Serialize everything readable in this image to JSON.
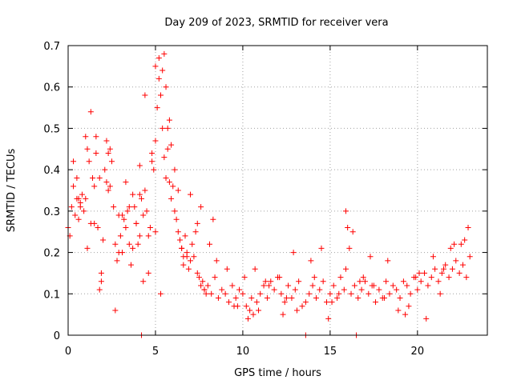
{
  "chart_data": {
    "type": "scatter",
    "title": "Day 209 of 2023, SRMTID for receiver vera",
    "xlabel": "GPS time / hours",
    "ylabel": "SRMTID / TECUs",
    "xlim": [
      0,
      24
    ],
    "ylim": [
      0,
      0.7
    ],
    "xticks": [
      0,
      5,
      10,
      15,
      20
    ],
    "xtick_labels": [
      "0",
      "5",
      "10",
      "15",
      "20"
    ],
    "yticks": [
      0,
      0.1,
      0.2,
      0.3,
      0.4,
      0.5,
      0.6,
      0.7
    ],
    "ytick_labels": [
      "0",
      "0.1",
      "0.2",
      "0.3",
      "0.4",
      "0.5",
      "0.6",
      "0.7"
    ],
    "grid": true,
    "marker": "+",
    "color": "#ff0000",
    "series": [
      {
        "name": "SRMTID",
        "x": [
          0.0,
          0.1,
          0.2,
          0.3,
          0.4,
          0.5,
          0.6,
          0.7,
          0.8,
          0.9,
          1.0,
          1.1,
          1.2,
          1.3,
          1.4,
          1.5,
          1.6,
          1.7,
          1.8,
          1.9,
          2.0,
          2.1,
          2.2,
          2.3,
          2.4,
          2.5,
          2.6,
          2.7,
          2.8,
          2.9,
          3.0,
          3.1,
          3.2,
          3.3,
          3.4,
          3.5,
          3.6,
          3.7,
          3.8,
          3.9,
          4.0,
          4.1,
          4.2,
          4.3,
          4.4,
          4.5,
          4.6,
          4.7,
          4.8,
          4.9,
          5.0,
          5.1,
          5.2,
          5.3,
          5.4,
          5.5,
          5.6,
          5.7,
          5.8,
          5.9,
          6.0,
          6.1,
          6.2,
          6.3,
          6.4,
          6.5,
          6.6,
          6.7,
          6.8,
          6.9,
          7.0,
          7.1,
          7.2,
          7.3,
          7.4,
          7.5,
          7.6,
          7.7,
          7.8,
          7.9,
          8.0,
          8.2,
          8.4,
          8.6,
          8.8,
          9.0,
          9.2,
          9.4,
          9.6,
          9.8,
          10.0,
          10.2,
          10.4,
          10.6,
          10.8,
          11.0,
          11.2,
          11.4,
          11.6,
          11.8,
          12.0,
          12.2,
          12.4,
          12.6,
          12.8,
          13.0,
          13.2,
          13.4,
          13.6,
          13.8,
          14.0,
          14.2,
          14.4,
          14.6,
          14.8,
          15.0,
          15.2,
          15.4,
          15.6,
          15.8,
          15.9,
          16.0,
          16.2,
          16.4,
          16.6,
          16.8,
          17.0,
          17.2,
          17.4,
          17.6,
          17.8,
          18.0,
          18.2,
          18.4,
          18.6,
          18.8,
          19.0,
          19.2,
          19.4,
          19.6,
          19.8,
          20.0,
          20.2,
          20.4,
          20.6,
          20.8,
          21.0,
          21.2,
          21.4,
          21.6,
          21.8,
          22.0,
          22.2,
          22.4,
          22.6,
          22.8,
          22.9,
          4.2,
          13.6,
          16.5,
          1.0,
          1.3,
          1.6,
          2.2,
          2.4,
          3.5,
          3.9,
          4.4,
          4.8,
          5.0,
          5.2,
          5.4,
          5.6,
          5.8,
          6.1,
          6.3,
          0.3,
          0.5,
          0.7,
          1.5,
          1.9,
          2.7,
          3.1,
          3.3,
          4.1,
          4.6,
          5.3,
          5.5,
          5.9,
          6.5,
          6.8,
          7.4,
          7.6,
          8.1,
          8.5,
          9.1,
          9.5,
          10.1,
          10.5,
          10.9,
          11.5,
          12.1,
          12.5,
          13.1,
          13.9,
          14.5,
          15.1,
          15.9,
          16.1,
          16.9,
          17.5,
          18.1,
          18.9,
          19.5,
          20.1,
          20.9,
          21.5,
          22.1,
          22.7,
          1.1,
          1.8,
          2.3,
          4.1,
          5.0,
          5.7,
          7.0,
          8.3,
          9.7,
          11.3,
          12.3,
          14.1,
          15.5,
          16.3,
          17.3,
          18.3,
          19.3,
          20.5,
          21.3,
          22.5,
          23.0,
          0.6,
          2.9,
          3.7,
          4.3,
          6.6,
          7.8,
          10.3,
          10.7,
          12.9,
          14.9,
          16.7,
          19.9,
          21.9
        ],
        "y": [
          0.26,
          0.24,
          0.31,
          0.36,
          0.29,
          0.33,
          0.28,
          0.31,
          0.34,
          0.3,
          0.33,
          0.45,
          0.42,
          0.27,
          0.38,
          0.36,
          0.44,
          0.26,
          0.11,
          0.15,
          0.23,
          0.4,
          0.37,
          0.44,
          0.36,
          0.42,
          0.31,
          0.22,
          0.18,
          0.29,
          0.24,
          0.2,
          0.28,
          0.26,
          0.3,
          0.22,
          0.17,
          0.21,
          0.31,
          0.27,
          0.22,
          0.24,
          0.33,
          0.29,
          0.35,
          0.3,
          0.24,
          0.26,
          0.42,
          0.4,
          0.47,
          0.55,
          0.62,
          0.58,
          0.5,
          0.43,
          0.38,
          0.45,
          0.37,
          0.33,
          0.36,
          0.3,
          0.28,
          0.25,
          0.23,
          0.21,
          0.19,
          0.24,
          0.2,
          0.16,
          0.18,
          0.22,
          0.19,
          0.25,
          0.15,
          0.14,
          0.12,
          0.13,
          0.11,
          0.1,
          0.12,
          0.1,
          0.14,
          0.09,
          0.11,
          0.1,
          0.08,
          0.12,
          0.09,
          0.11,
          0.1,
          0.07,
          0.06,
          0.05,
          0.08,
          0.1,
          0.12,
          0.09,
          0.13,
          0.11,
          0.14,
          0.1,
          0.08,
          0.12,
          0.09,
          0.11,
          0.13,
          0.07,
          0.08,
          0.1,
          0.12,
          0.09,
          0.11,
          0.13,
          0.08,
          0.1,
          0.12,
          0.09,
          0.14,
          0.11,
          0.3,
          0.26,
          0.1,
          0.12,
          0.09,
          0.11,
          0.13,
          0.1,
          0.12,
          0.08,
          0.11,
          0.09,
          0.13,
          0.1,
          0.12,
          0.11,
          0.09,
          0.13,
          0.12,
          0.1,
          0.14,
          0.11,
          0.13,
          0.15,
          0.12,
          0.14,
          0.16,
          0.13,
          0.15,
          0.17,
          0.14,
          0.16,
          0.18,
          0.15,
          0.17,
          0.14,
          0.26,
          0.0,
          0.0,
          0.0,
          0.48,
          0.54,
          0.48,
          0.47,
          0.45,
          0.31,
          0.27,
          0.58,
          0.44,
          0.65,
          0.67,
          0.64,
          0.6,
          0.52,
          0.4,
          0.35,
          0.42,
          0.38,
          0.32,
          0.27,
          0.13,
          0.06,
          0.29,
          0.37,
          0.34,
          0.15,
          0.1,
          0.68,
          0.46,
          0.21,
          0.19,
          0.27,
          0.31,
          0.22,
          0.18,
          0.16,
          0.07,
          0.14,
          0.09,
          0.06,
          0.12,
          0.14,
          0.09,
          0.06,
          0.18,
          0.21,
          0.08,
          0.16,
          0.21,
          0.14,
          0.12,
          0.09,
          0.06,
          0.07,
          0.15,
          0.19,
          0.16,
          0.22,
          0.23,
          0.21,
          0.38,
          0.35,
          0.41,
          0.25,
          0.5,
          0.34,
          0.28,
          0.07,
          0.13,
          0.05,
          0.14,
          0.1,
          0.25,
          0.19,
          0.18,
          0.05,
          0.04,
          0.1,
          0.22,
          0.19,
          0.33,
          0.2,
          0.34,
          0.13,
          0.17,
          0.11,
          0.04,
          0.16,
          0.2,
          0.04,
          0.13,
          0.14,
          0.21
        ]
      }
    ]
  }
}
